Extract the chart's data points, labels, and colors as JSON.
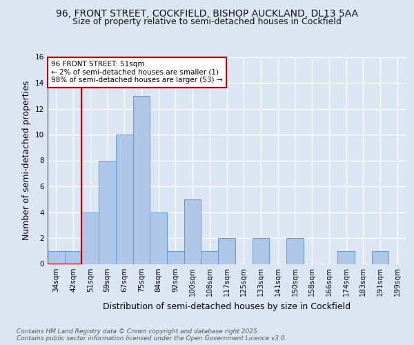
{
  "title": "96, FRONT STREET, COCKFIELD, BISHOP AUCKLAND, DL13 5AA",
  "subtitle": "Size of property relative to semi-detached houses in Cockfield",
  "xlabel": "Distribution of semi-detached houses by size in Cockfield",
  "ylabel": "Number of semi-detached properties",
  "footnote": "Contains HM Land Registry data © Crown copyright and database right 2025.\nContains public sector information licensed under the Open Government Licence v3.0.",
  "bins": [
    "34sqm",
    "42sqm",
    "51sqm",
    "59sqm",
    "67sqm",
    "75sqm",
    "84sqm",
    "92sqm",
    "100sqm",
    "108sqm",
    "117sqm",
    "125sqm",
    "133sqm",
    "141sqm",
    "150sqm",
    "158sqm",
    "166sqm",
    "174sqm",
    "183sqm",
    "191sqm",
    "199sqm"
  ],
  "values": [
    1,
    1,
    4,
    8,
    10,
    13,
    4,
    1,
    5,
    1,
    2,
    0,
    2,
    0,
    2,
    0,
    0,
    1,
    0,
    1,
    0
  ],
  "highlight_bin_index": 2,
  "bar_color": "#aec6e8",
  "bar_edge_color": "#5b9bd5",
  "highlight_line_color": "#cc0000",
  "annotation_text": "96 FRONT STREET: 51sqm\n← 2% of semi-detached houses are smaller (1)\n98% of semi-detached houses are larger (53) →",
  "annotation_box_color": "#ffffff",
  "annotation_box_edge": "#cc0000",
  "ylim": [
    0,
    16
  ],
  "yticks": [
    0,
    2,
    4,
    6,
    8,
    10,
    12,
    14,
    16
  ],
  "bg_color": "#dce6f2",
  "plot_bg_color": "#dce6f2",
  "grid_color": "#ffffff",
  "title_fontsize": 10,
  "subtitle_fontsize": 9,
  "ylabel_fontsize": 9,
  "xlabel_fontsize": 9,
  "tick_fontsize": 7.5,
  "annot_fontsize": 7.5,
  "footnote_fontsize": 6.5
}
